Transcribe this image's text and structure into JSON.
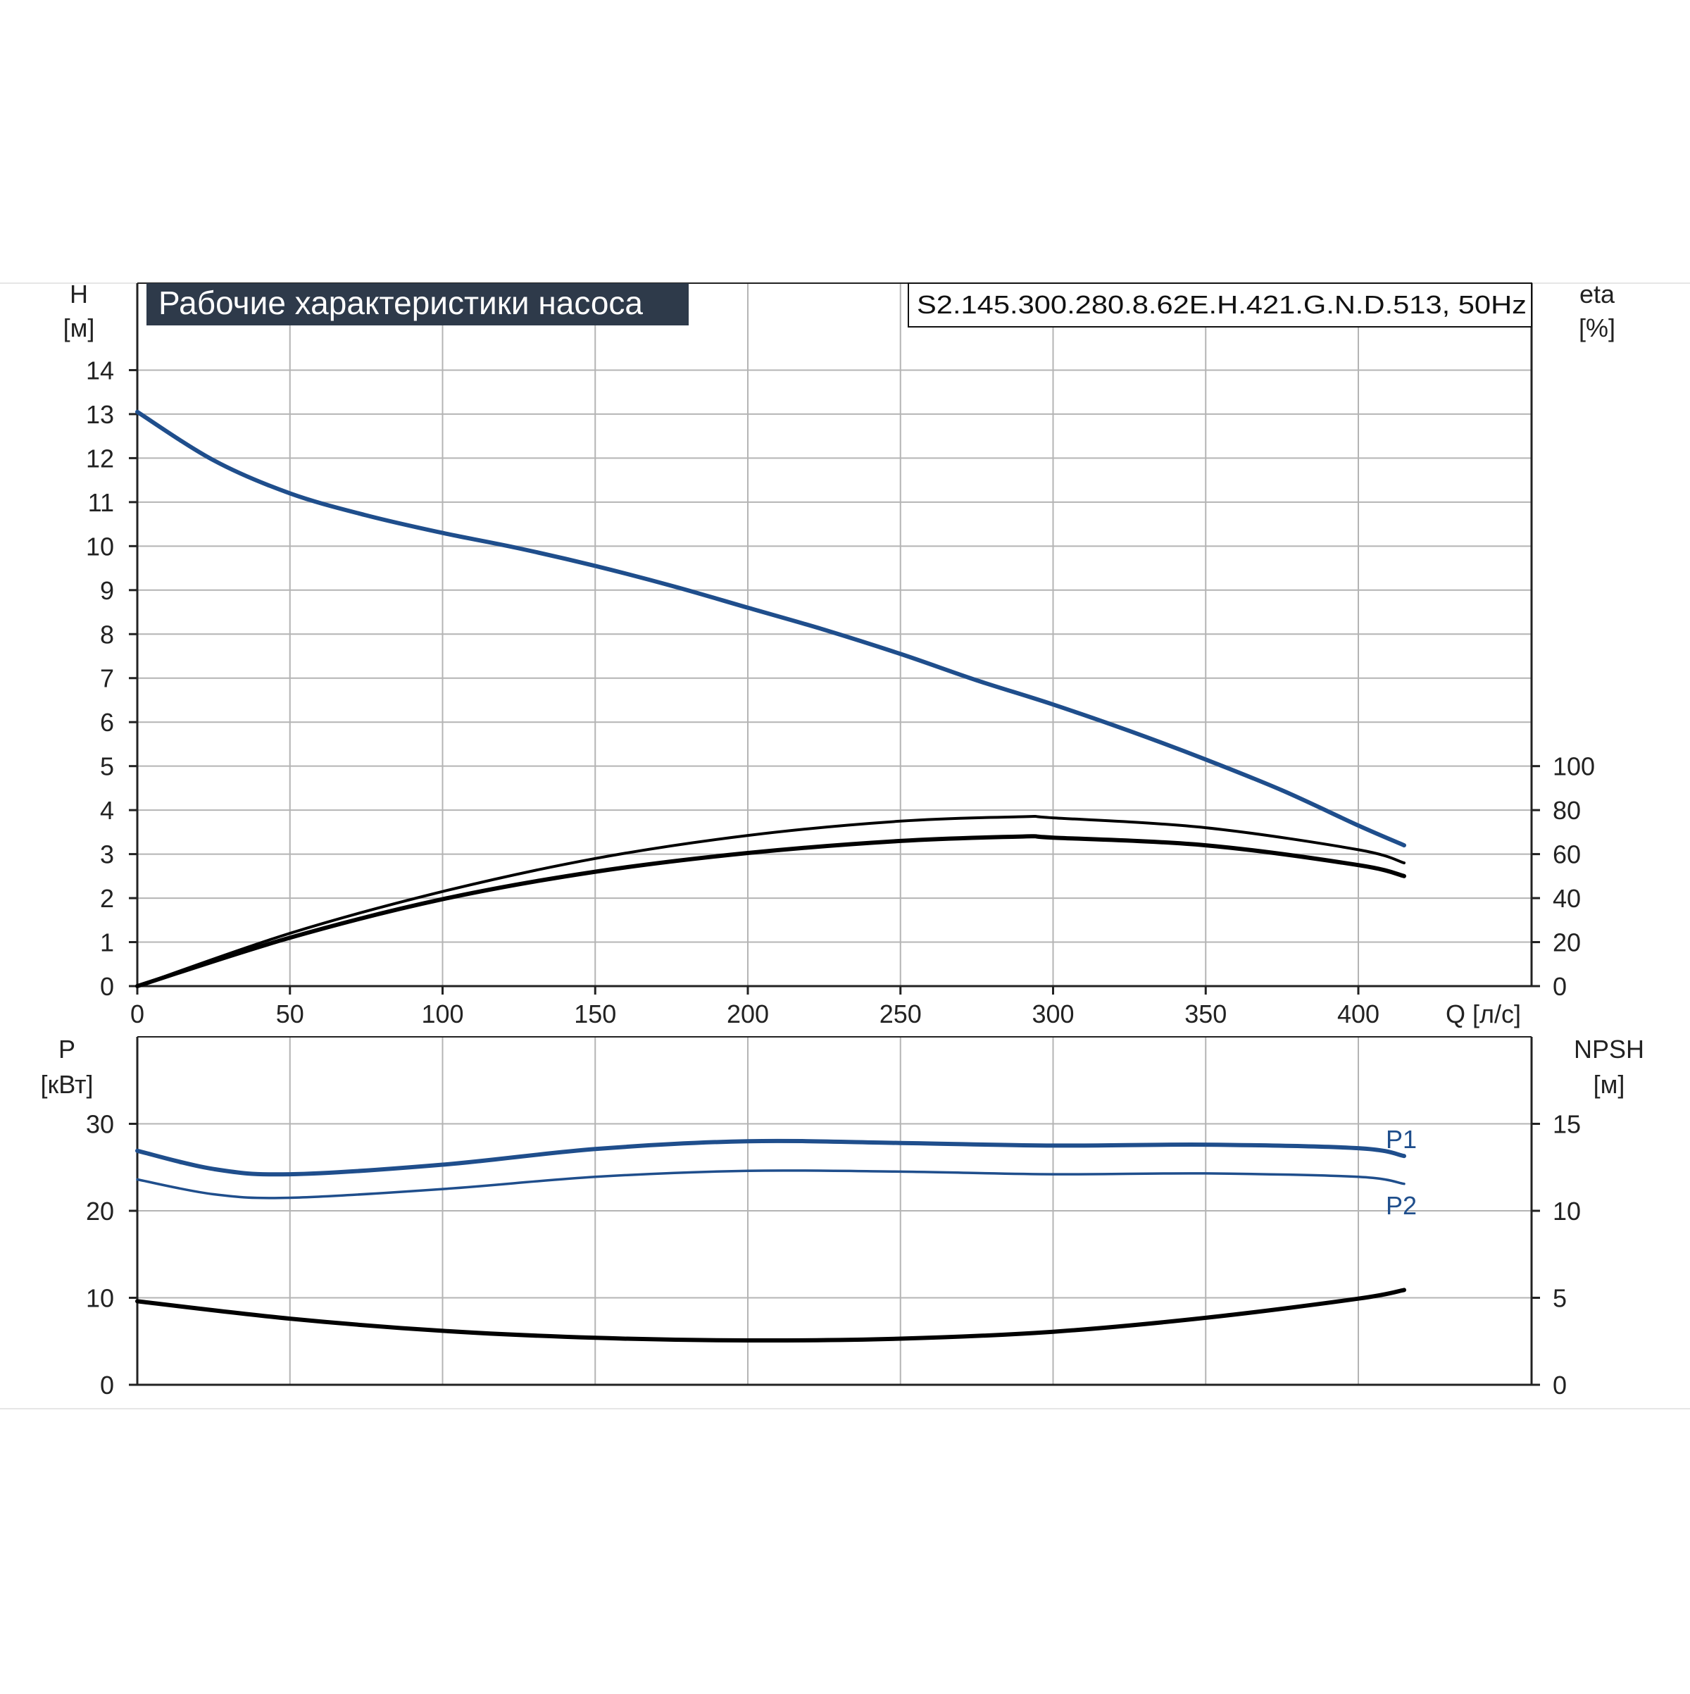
{
  "chart_data": [
    {
      "type": "line",
      "title": "Рабочие характеристики насоса",
      "model": "S2.145.300.280.8.62E.H.421.G.N.D.513, 50Hz",
      "xlabel": "Q [л/с]",
      "ylabel": [
        "H",
        "[м]"
      ],
      "y2label": [
        "eta",
        "[%]"
      ],
      "xlim": [
        0,
        430
      ],
      "ylim": [
        0,
        15
      ],
      "y2lim": [
        0,
        100
      ],
      "x_ticks": [
        "0",
        "50",
        "100",
        "150",
        "200",
        "250",
        "300",
        "350",
        "400"
      ],
      "y_ticks": [
        "0",
        "1",
        "2",
        "3",
        "4",
        "5",
        "6",
        "7",
        "8",
        "9",
        "10",
        "11",
        "12",
        "13",
        "14"
      ],
      "y2_ticks": [
        "0",
        "20",
        "40",
        "60",
        "80",
        "100"
      ],
      "grid": true,
      "colors": {
        "head": "#1f4e8c",
        "efficiency": "#000000",
        "grid": "#b4b4b4",
        "title_bg": "#2e3a4a"
      },
      "series": [
        {
          "axis": "left",
          "color": "#1f4e8c",
          "x": [
            0,
            25,
            50,
            75,
            100,
            125,
            150,
            175,
            200,
            225,
            250,
            275,
            300,
            325,
            350,
            375,
            400,
            415
          ],
          "y": [
            13.05,
            11.95,
            11.2,
            10.7,
            10.3,
            9.95,
            9.55,
            9.1,
            8.6,
            8.1,
            7.55,
            6.95,
            6.4,
            5.8,
            5.15,
            4.45,
            3.65,
            3.2
          ]
        },
        {
          "axis": "right",
          "color": "#000000",
          "x": [
            0,
            50,
            100,
            150,
            200,
            250,
            290,
            300,
            350,
            400,
            415
          ],
          "y": [
            0,
            24,
            43,
            58,
            68.5,
            75,
            77,
            76.5,
            72,
            62,
            56
          ]
        },
        {
          "axis": "right",
          "color": "#000000",
          "x": [
            0,
            50,
            100,
            150,
            200,
            250,
            290,
            300,
            350,
            400,
            415
          ],
          "y": [
            0,
            22,
            39.5,
            52,
            60.5,
            66,
            68,
            67.5,
            64,
            55,
            50
          ]
        }
      ]
    },
    {
      "type": "line",
      "xlim": [
        0,
        430
      ],
      "ylabel": [
        "P",
        "[кВт]"
      ],
      "y2label": [
        "NPSH",
        "[м]"
      ],
      "ylim": [
        0,
        40
      ],
      "y2lim": [
        0,
        20
      ],
      "y_ticks": [
        "0",
        "10",
        "20",
        "30"
      ],
      "y2_ticks": [
        "0",
        "5",
        "10",
        "15"
      ],
      "grid": true,
      "colors": {
        "power": "#1f4e8c",
        "npsh": "#000000"
      },
      "series": [
        {
          "name": "P1",
          "axis": "left",
          "color": "#1f4e8c",
          "x": [
            0,
            25,
            50,
            100,
            150,
            200,
            250,
            300,
            350,
            400,
            415
          ],
          "y": [
            26.9,
            24.8,
            24.2,
            25.3,
            27.1,
            28.0,
            27.8,
            27.5,
            27.6,
            27.2,
            26.3
          ]
        },
        {
          "name": "P2",
          "axis": "left",
          "color": "#1f4e8c",
          "x": [
            0,
            25,
            50,
            100,
            150,
            200,
            250,
            300,
            350,
            400,
            415
          ],
          "y": [
            23.6,
            21.9,
            21.5,
            22.5,
            23.9,
            24.6,
            24.5,
            24.2,
            24.3,
            23.9,
            23.1
          ]
        },
        {
          "axis": "right",
          "color": "#000000",
          "x": [
            0,
            50,
            100,
            150,
            200,
            250,
            300,
            350,
            400,
            415
          ],
          "y": [
            4.8,
            3.8,
            3.1,
            2.7,
            2.55,
            2.65,
            3.05,
            3.85,
            4.95,
            5.45
          ]
        }
      ]
    }
  ]
}
